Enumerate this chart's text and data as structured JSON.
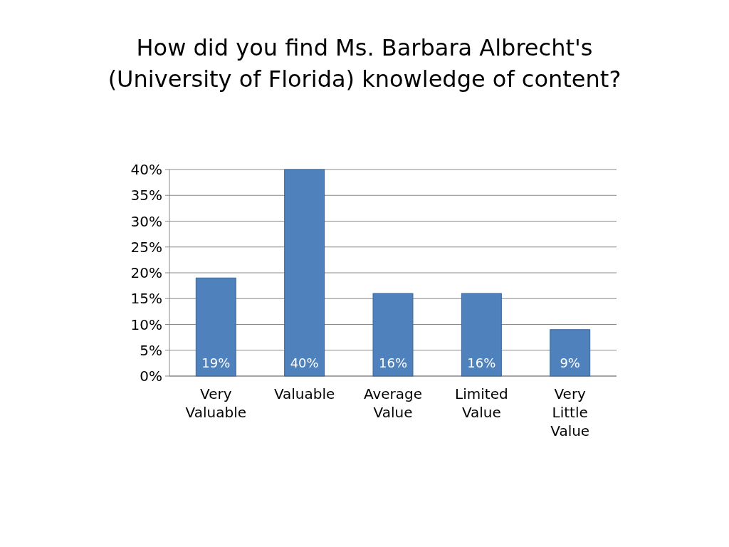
{
  "chart_data": {
    "type": "bar",
    "title": "How did you find Ms. Barbara Albrecht's (University of Florida) knowledge of content?",
    "categories": [
      "Very Valuable",
      "Valuable",
      "Average Value",
      "Limited Value",
      "Very Little Value"
    ],
    "values": [
      19,
      40,
      16,
      16,
      9
    ],
    "value_labels": [
      "19%",
      "40%",
      "16%",
      "16%",
      "9%"
    ],
    "color": "#4f81bd",
    "ylim": [
      0,
      40
    ],
    "yticks": [
      {
        "value": 0,
        "label": "0%"
      },
      {
        "value": 5,
        "label": "5%"
      },
      {
        "value": 10,
        "label": "10%"
      },
      {
        "value": 15,
        "label": "15%"
      },
      {
        "value": 20,
        "label": "20%"
      },
      {
        "value": 25,
        "label": "25%"
      },
      {
        "value": 30,
        "label": "30%"
      },
      {
        "value": 35,
        "label": "35%"
      },
      {
        "value": 40,
        "label": "40%"
      }
    ],
    "grid": true
  }
}
